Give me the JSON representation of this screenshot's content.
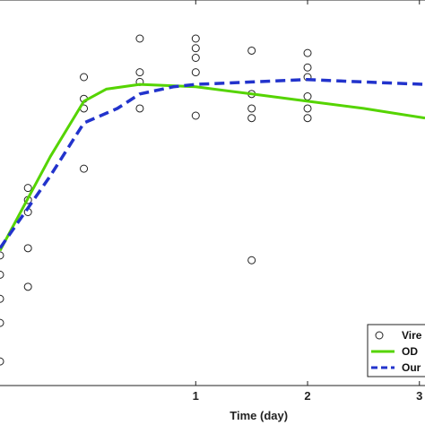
{
  "chart_data": {
    "type": "line",
    "xlabel": "Time (day)",
    "ylabel": "",
    "title": "",
    "xlim": [
      -0.75,
      3.05
    ],
    "ylim": [
      0,
      8
    ],
    "xticks": [
      {
        "value": 1,
        "label": "1"
      },
      {
        "value": 2,
        "label": "2"
      },
      {
        "value": 3,
        "label": "3"
      }
    ],
    "grid": false,
    "legend_position": "bottom-right",
    "scatter": {
      "name": "Vire",
      "marker": "open-circle",
      "color": "#222222",
      "points": [
        [
          -0.75,
          2.3
        ],
        [
          -0.75,
          2.7
        ],
        [
          -0.75,
          1.8
        ],
        [
          -0.75,
          1.3
        ],
        [
          -0.75,
          0.5
        ],
        [
          -0.5,
          3.6
        ],
        [
          -0.5,
          3.85
        ],
        [
          -0.5,
          4.1
        ],
        [
          -0.5,
          2.85
        ],
        [
          -0.5,
          2.05
        ],
        [
          0.0,
          6.4
        ],
        [
          0.0,
          5.95
        ],
        [
          0.0,
          5.75
        ],
        [
          0.0,
          4.5
        ],
        [
          0.5,
          7.2
        ],
        [
          0.5,
          6.5
        ],
        [
          0.5,
          6.3
        ],
        [
          0.5,
          5.75
        ],
        [
          1.0,
          7.2
        ],
        [
          1.0,
          7.0
        ],
        [
          1.0,
          6.8
        ],
        [
          1.0,
          6.5
        ],
        [
          1.0,
          5.6
        ],
        [
          1.5,
          6.95
        ],
        [
          1.5,
          6.05
        ],
        [
          1.5,
          5.75
        ],
        [
          1.5,
          5.55
        ],
        [
          1.5,
          2.6
        ],
        [
          2.0,
          6.9
        ],
        [
          2.0,
          6.6
        ],
        [
          2.0,
          6.4
        ],
        [
          2.0,
          6.0
        ],
        [
          2.0,
          5.75
        ],
        [
          2.0,
          5.55
        ]
      ]
    },
    "series": [
      {
        "name": "OD",
        "color": "#55d400",
        "style": "solid",
        "x": [
          -0.75,
          -0.3,
          0.0,
          0.2,
          0.5,
          1.0,
          1.5,
          2.0,
          2.5,
          3.05
        ],
        "y": [
          2.8,
          4.75,
          5.9,
          6.15,
          6.25,
          6.2,
          6.05,
          5.9,
          5.75,
          5.55
        ]
      },
      {
        "name": "Our",
        "color": "#2233cc",
        "style": "dashed",
        "x": [
          -0.75,
          -0.3,
          0.0,
          0.3,
          0.5,
          0.8,
          1.0,
          1.5,
          2.0,
          2.5,
          3.05
        ],
        "y": [
          2.85,
          4.35,
          5.45,
          5.75,
          6.05,
          6.2,
          6.25,
          6.3,
          6.35,
          6.3,
          6.25
        ]
      }
    ],
    "legend": [
      {
        "label": "Vire",
        "kind": "marker"
      },
      {
        "label": "OD",
        "kind": "solid"
      },
      {
        "label": "Our",
        "kind": "dashed"
      }
    ]
  }
}
